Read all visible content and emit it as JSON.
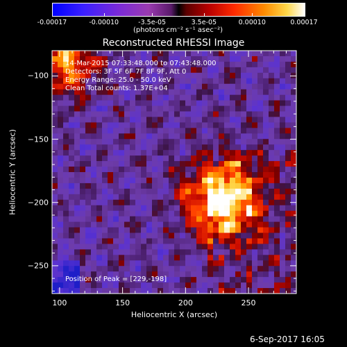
{
  "colorbar": {
    "ticks": [
      "-0.00017",
      "-0.00010",
      "-3.5e-05",
      "3.5e-05",
      "0.00010",
      "0.00017"
    ],
    "units": "(photons cm⁻² s⁻¹ asec⁻²)"
  },
  "title": "Reconstructed RHESSI Image",
  "annotations": {
    "time": "14-Mar-2015 07:33:48.000 to 07:43:48.000",
    "detectors": "Detectors: 3F 5F 6F 7F 8F 9F, Att 0",
    "energy": "Energy Range: 25.0 - 50.0 keV",
    "clean": "Clean     Total counts: 1.37E+04",
    "peak": "Position of Peak = [229,-198]"
  },
  "stamp": "6-Sep-2017 16:05",
  "chart_data": {
    "type": "heatmap",
    "title": "Reconstructed RHESSI Image",
    "xlabel": "Heliocentric X (arcsec)",
    "ylabel": "Heliocentric Y (arcsec)",
    "xlim": [
      94,
      288
    ],
    "ylim": [
      -272,
      -80
    ],
    "x_ticks": [
      100,
      150,
      200,
      250
    ],
    "y_ticks": [
      -100,
      -150,
      -200,
      -250
    ],
    "colorbar_range": [
      -0.00017,
      0.00017
    ],
    "colorbar_ticks": [
      -0.00017,
      -0.0001,
      -3.5e-05,
      3.5e-05,
      0.0001,
      0.00017
    ],
    "peak": {
      "x": 229,
      "y": -198
    },
    "grid": false
  }
}
